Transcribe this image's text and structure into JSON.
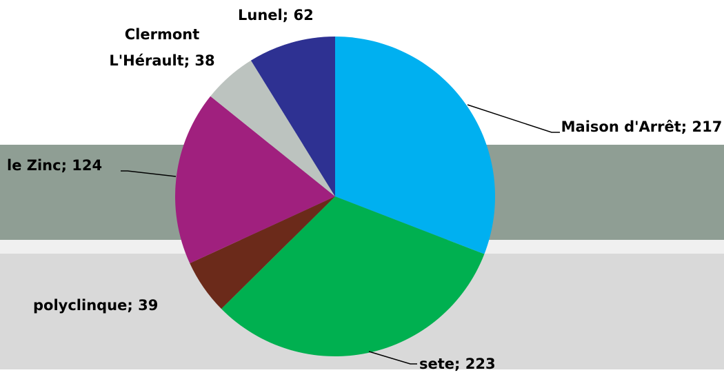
{
  "chart_data": {
    "type": "pie",
    "categories": [
      "Maison d'Arrêt",
      "sete",
      "polyclinque",
      "le Zinc",
      "Clermont L'Hérault",
      "Lunel"
    ],
    "values": [
      217,
      223,
      39,
      124,
      38,
      62
    ],
    "colors": [
      "#00b0f0",
      "#00b050",
      "#6b2a1a",
      "#a0207e",
      "#bcc3bf",
      "#2e3192"
    ],
    "label_separator": "; "
  }
}
